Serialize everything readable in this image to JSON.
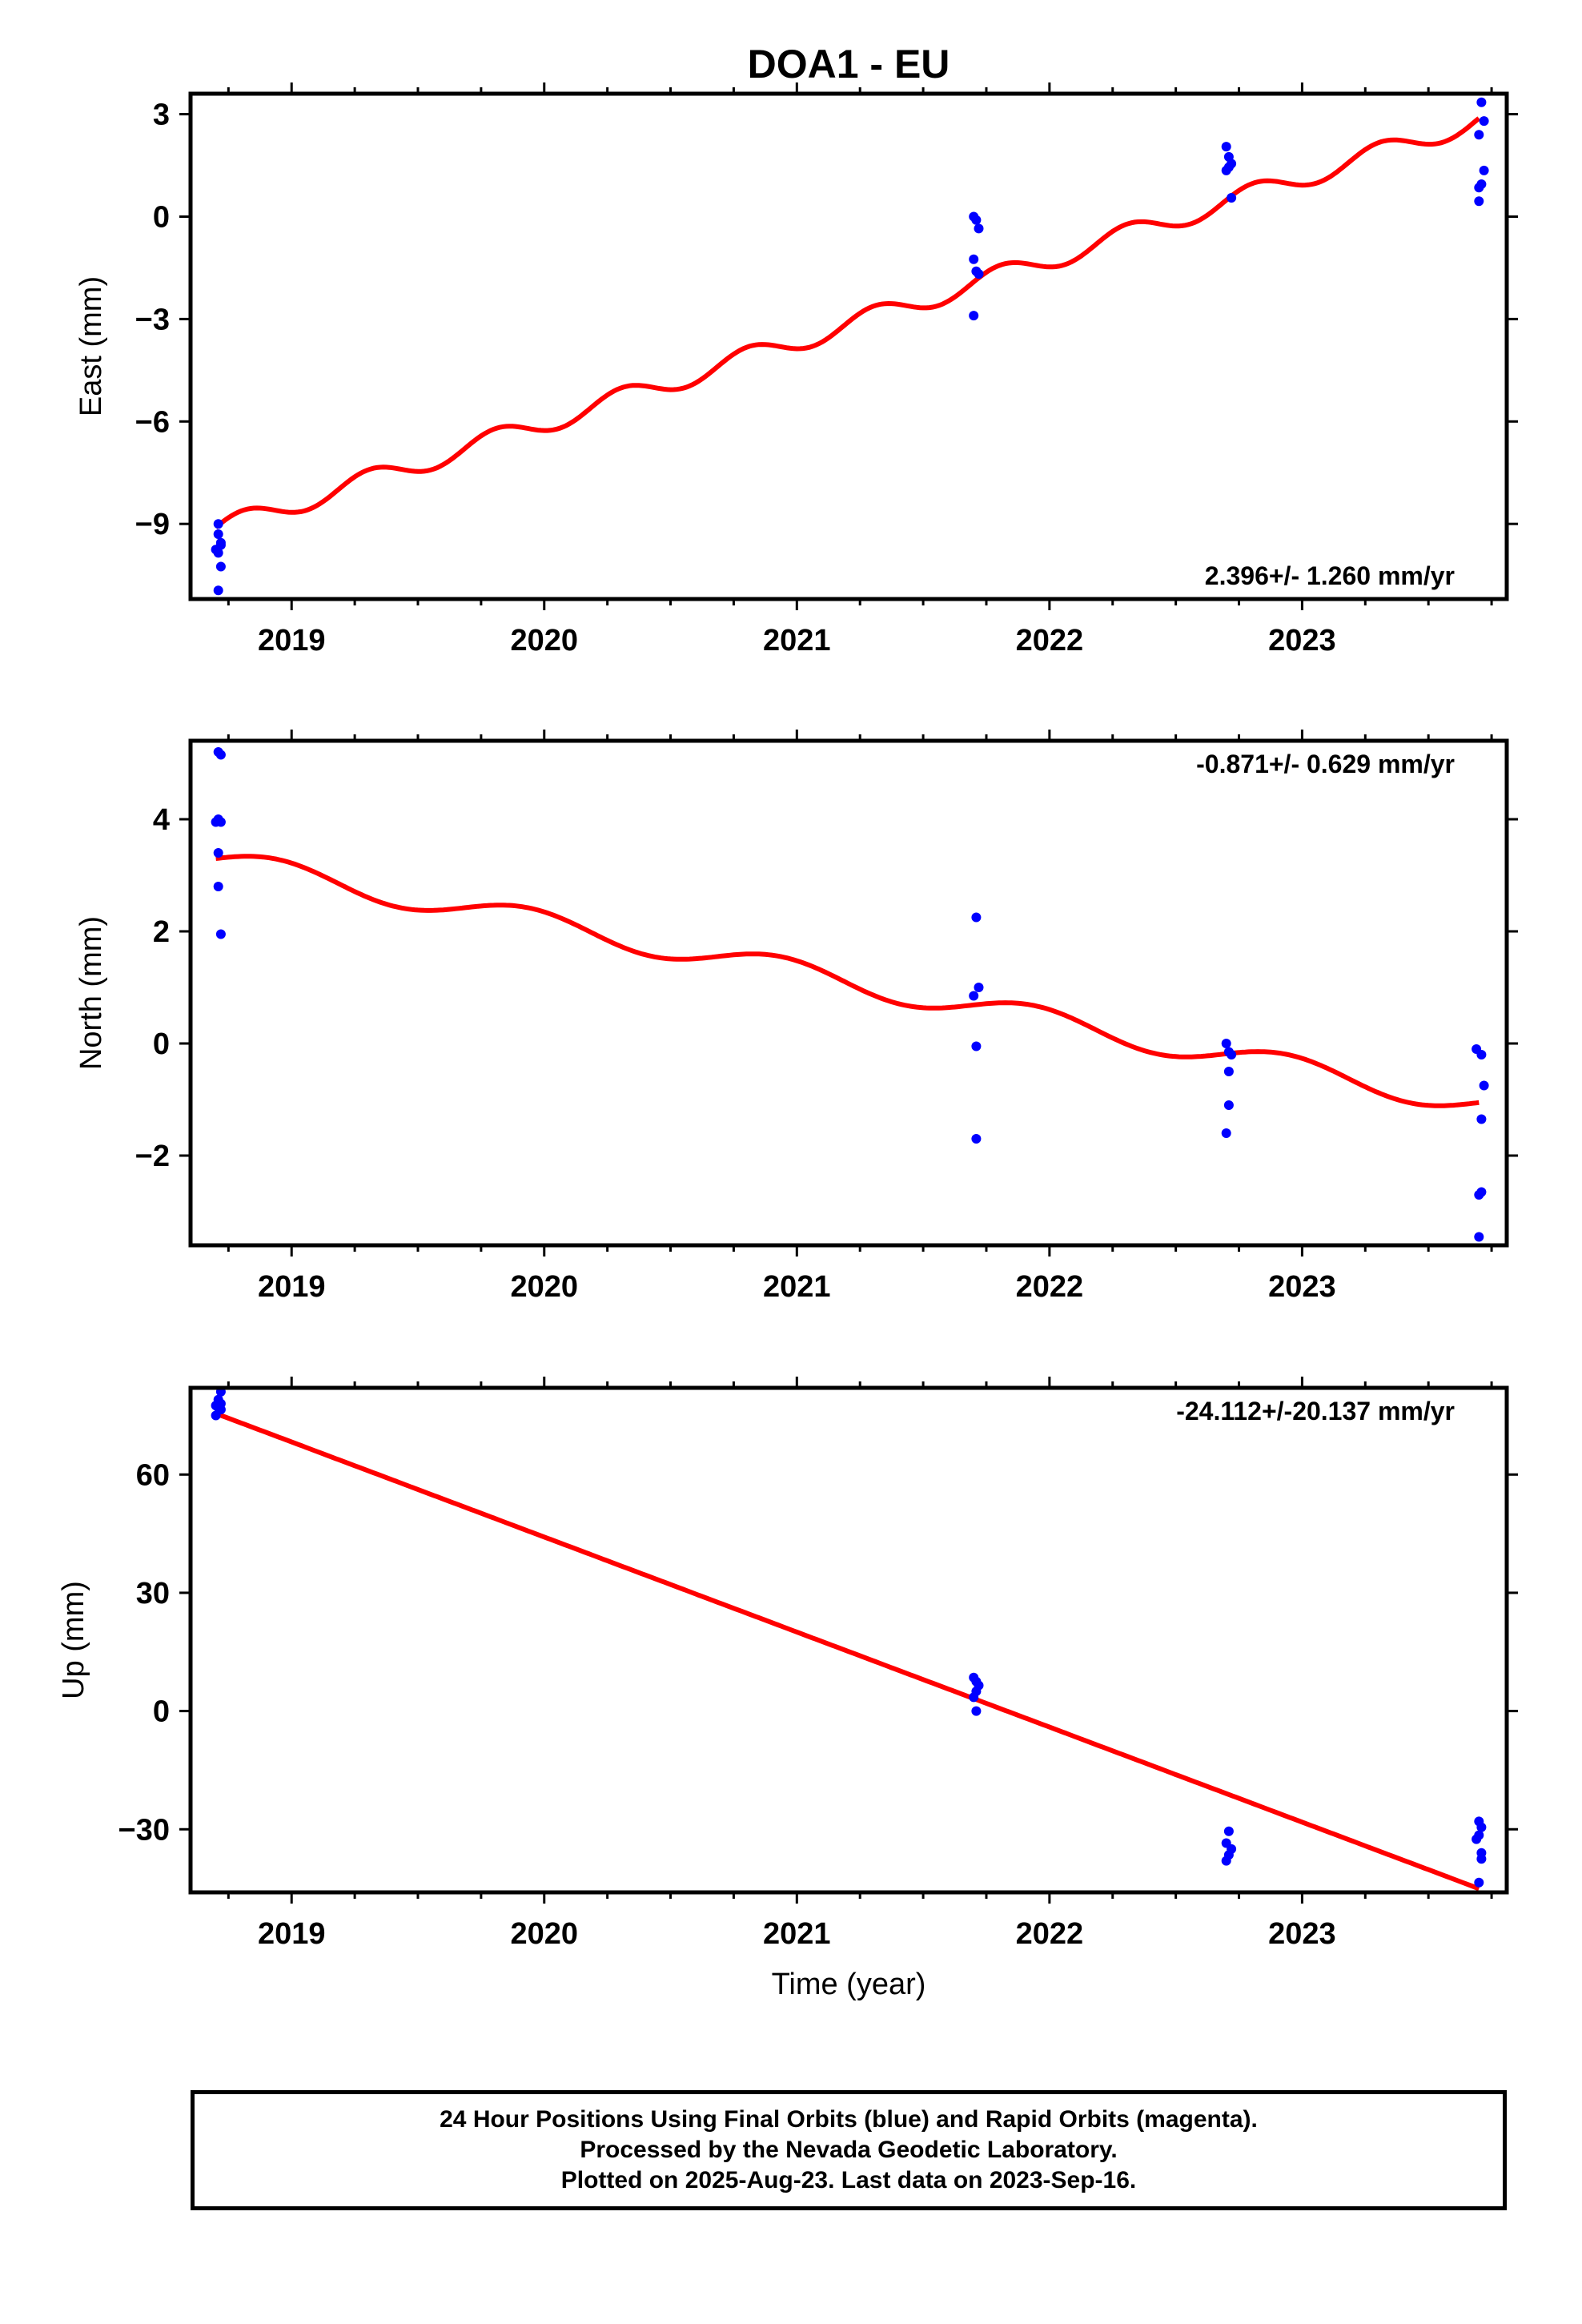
{
  "title": "DOA1 - EU",
  "xlabel": "Time (year)",
  "footer": {
    "line1": "24 Hour Positions Using Final Orbits (blue) and Rapid Orbits (magenta).",
    "line2": "Processed by the Nevada Geodetic Laboratory.",
    "line3": "Plotted on 2025-Aug-23. Last data on 2023-Sep-16."
  },
  "colors": {
    "data_points": "#0000ff",
    "model_line": "#ff0000",
    "frame": "#000000"
  },
  "chart_data": [
    {
      "type": "scatter",
      "ylabel": "East (mm)",
      "rate_label": "2.396+/- 1.260 mm/yr",
      "xlim": [
        2018.6,
        2023.81
      ],
      "ylim": [
        -11.2,
        3.6
      ],
      "yticks": [
        -9,
        -6,
        -3,
        0,
        3
      ],
      "ytick_labels": [
        "−9",
        "−6",
        "−3",
        "0",
        "3"
      ],
      "xticks": [
        2019,
        2020,
        2021,
        2022,
        2023
      ],
      "points": [
        [
          2018.71,
          -9.0
        ],
        [
          2018.71,
          -9.3
        ],
        [
          2018.72,
          -9.55
        ],
        [
          2018.7,
          -9.75
        ],
        [
          2018.72,
          -9.62
        ],
        [
          2018.71,
          -9.85
        ],
        [
          2018.72,
          -10.25
        ],
        [
          2018.71,
          -10.95
        ],
        [
          2021.7,
          0.0
        ],
        [
          2021.71,
          -0.1
        ],
        [
          2021.72,
          -0.35
        ],
        [
          2021.7,
          -1.25
        ],
        [
          2021.71,
          -1.6
        ],
        [
          2021.72,
          -1.68
        ],
        [
          2021.7,
          -2.9
        ],
        [
          2022.7,
          2.05
        ],
        [
          2022.71,
          1.75
        ],
        [
          2022.72,
          1.55
        ],
        [
          2022.7,
          1.35
        ],
        [
          2022.71,
          1.45
        ],
        [
          2022.72,
          0.55
        ],
        [
          2023.71,
          3.35
        ],
        [
          2023.72,
          2.8
        ],
        [
          2023.7,
          2.4
        ],
        [
          2023.72,
          1.35
        ],
        [
          2023.71,
          0.95
        ],
        [
          2023.7,
          0.85
        ],
        [
          2023.7,
          0.45
        ]
      ],
      "model": {
        "start": 2018.7,
        "end": 2023.7,
        "x0": 2018.7,
        "y0": -9.1,
        "rate": 2.396,
        "amp": 0.3,
        "period": 0.5,
        "phase": 0.2
      }
    },
    {
      "type": "scatter",
      "ylabel": "North (mm)",
      "rate_label": "-0.871+/- 0.629 mm/yr",
      "xlim": [
        2018.6,
        2023.81
      ],
      "ylim": [
        -3.6,
        5.4
      ],
      "yticks": [
        -2,
        0,
        2,
        4
      ],
      "ytick_labels": [
        "−2",
        "0",
        "2",
        "4"
      ],
      "xticks": [
        2019,
        2020,
        2021,
        2022,
        2023
      ],
      "points": [
        [
          2018.71,
          5.2
        ],
        [
          2018.72,
          5.15
        ],
        [
          2018.71,
          4.0
        ],
        [
          2018.72,
          3.95
        ],
        [
          2018.7,
          3.95
        ],
        [
          2018.71,
          3.4
        ],
        [
          2018.71,
          2.8
        ],
        [
          2018.72,
          1.95
        ],
        [
          2021.71,
          2.25
        ],
        [
          2021.72,
          1.0
        ],
        [
          2021.7,
          0.85
        ],
        [
          2021.71,
          -0.05
        ],
        [
          2021.71,
          -1.7
        ],
        [
          2022.7,
          0.0
        ],
        [
          2022.71,
          -0.15
        ],
        [
          2022.72,
          -0.2
        ],
        [
          2022.71,
          -0.5
        ],
        [
          2022.71,
          -1.1
        ],
        [
          2022.7,
          -1.6
        ],
        [
          2023.69,
          -0.1
        ],
        [
          2023.71,
          -0.2
        ],
        [
          2023.72,
          -0.75
        ],
        [
          2023.71,
          -1.35
        ],
        [
          2023.7,
          -2.7
        ],
        [
          2023.71,
          -2.65
        ],
        [
          2023.7,
          -3.45
        ]
      ],
      "model": {
        "start": 2018.7,
        "end": 2023.7,
        "x0": 2018.7,
        "y0": 3.3,
        "rate": -0.871,
        "amp": 0.22,
        "period": 1.0,
        "phase": 0.1
      }
    },
    {
      "type": "scatter",
      "ylabel": "Up (mm)",
      "rate_label": "-24.112+/-20.137 mm/yr",
      "xlim": [
        2018.6,
        2023.81
      ],
      "ylim": [
        -46,
        82
      ],
      "yticks": [
        -30,
        0,
        30,
        60
      ],
      "ytick_labels": [
        "−30",
        "0",
        "30",
        "60"
      ],
      "xticks": [
        2019,
        2020,
        2021,
        2022,
        2023
      ],
      "points": [
        [
          2018.72,
          81.0
        ],
        [
          2018.71,
          79.0
        ],
        [
          2018.72,
          78.0
        ],
        [
          2018.7,
          77.5
        ],
        [
          2018.71,
          77.0
        ],
        [
          2018.72,
          76.5
        ],
        [
          2018.7,
          75.0
        ],
        [
          2021.7,
          8.5
        ],
        [
          2021.71,
          7.5
        ],
        [
          2021.72,
          6.5
        ],
        [
          2021.71,
          5.0
        ],
        [
          2021.7,
          3.5
        ],
        [
          2021.71,
          0.0
        ],
        [
          2022.71,
          -30.5
        ],
        [
          2022.7,
          -33.5
        ],
        [
          2022.72,
          -35.0
        ],
        [
          2022.71,
          -36.5
        ],
        [
          2022.7,
          -38.0
        ],
        [
          2023.7,
          -28.0
        ],
        [
          2023.71,
          -29.5
        ],
        [
          2023.7,
          -31.5
        ],
        [
          2023.69,
          -32.5
        ],
        [
          2023.71,
          -36.0
        ],
        [
          2023.71,
          -37.5
        ],
        [
          2023.7,
          -43.5
        ]
      ],
      "model": {
        "start": 2018.7,
        "end": 2023.7,
        "x0": 2018.7,
        "y0": 75.5,
        "rate": -24.112,
        "amp": 0,
        "period": 1.0,
        "phase": 0
      }
    }
  ]
}
